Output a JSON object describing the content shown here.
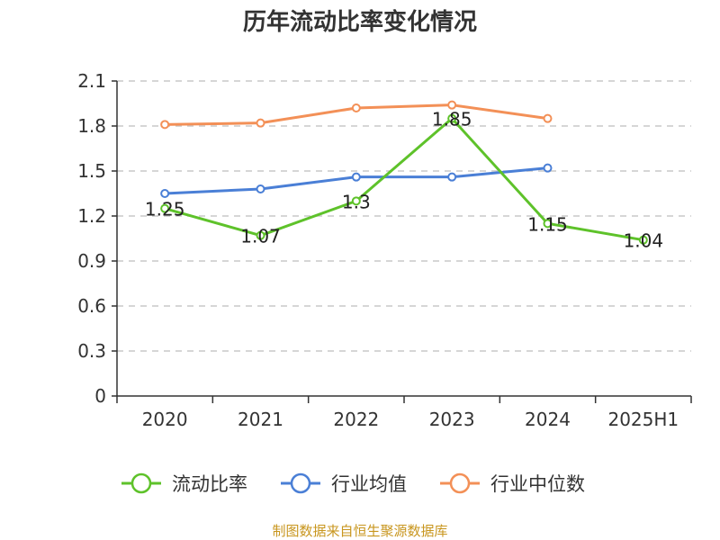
{
  "chart_data": {
    "type": "line",
    "title": "历年流动比率变化情况",
    "xlabel": "",
    "ylabel": "",
    "categories": [
      "2020",
      "2021",
      "2022",
      "2023",
      "2024",
      "2025H1"
    ],
    "y_ticks": [
      "0",
      "0.3",
      "0.6",
      "0.9",
      "1.2",
      "1.5",
      "1.8",
      "2.1"
    ],
    "ylim": [
      0,
      2.1
    ],
    "grid": "horizontal dashed",
    "legend_position": "bottom",
    "series": [
      {
        "name": "流动比率",
        "color": "#5ec22a",
        "values": [
          1.25,
          1.07,
          1.3,
          1.85,
          1.15,
          1.04
        ],
        "labels": [
          "1.25",
          "1.07",
          "1.3",
          "1.85",
          "1.15",
          "1.04"
        ]
      },
      {
        "name": "行业均值",
        "color": "#4a7fd6",
        "values": [
          1.35,
          1.38,
          1.46,
          1.46,
          1.52,
          null
        ]
      },
      {
        "name": "行业中位数",
        "color": "#f39057",
        "values": [
          1.81,
          1.82,
          1.92,
          1.94,
          1.85,
          null
        ]
      }
    ]
  },
  "source": "制图数据来自恒生聚源数据库"
}
